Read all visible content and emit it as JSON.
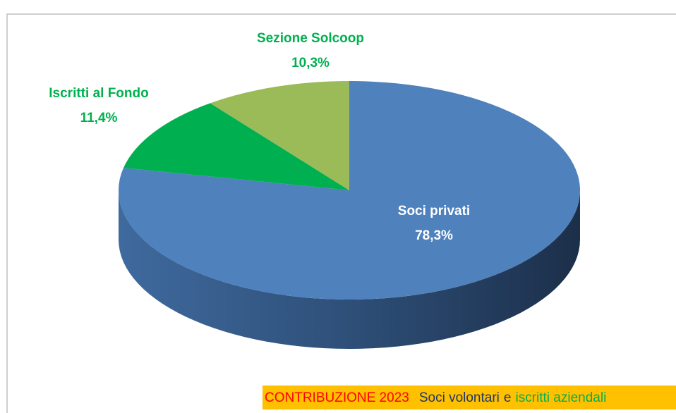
{
  "chart_data": {
    "type": "pie",
    "categories": [
      "Soci privati",
      "Iscritti al Fondo",
      "Sezione Solcoop"
    ],
    "values": [
      78.3,
      11.4,
      10.3
    ],
    "value_labels": [
      "78,3%",
      "11,4%",
      "10,3%"
    ],
    "colors": [
      "#4f81bd",
      "#00b050",
      "#9bbb59"
    ],
    "start_angle": 0,
    "direction": "clockwise",
    "caption": [
      "CONTRIBUZIONE 2023",
      "Soci volontari",
      "e",
      "iscritti aziendali"
    ]
  }
}
